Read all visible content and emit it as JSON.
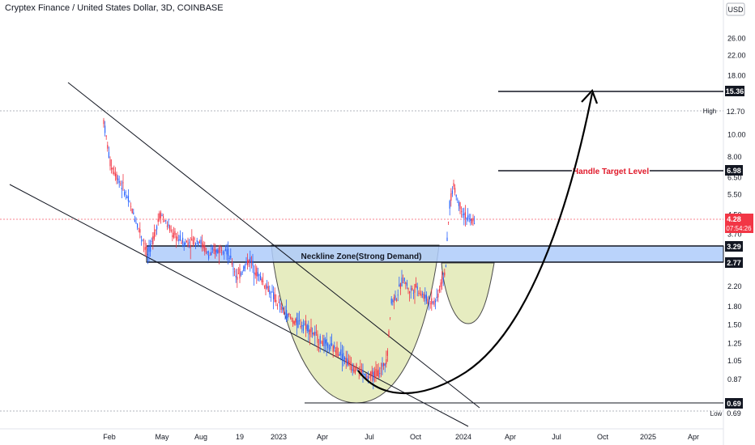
{
  "header": {
    "title": "Cryptex Finance / United States Dollar, 3D, COINBASE",
    "currency": "USD"
  },
  "chart_data": {
    "type": "candlestick",
    "title": "Cryptex Finance / United States Dollar, 3D, COINBASE",
    "y_scale": "log",
    "ylim": [
      0.6,
      36
    ],
    "y_ticks": [
      "26.00",
      "22.00",
      "18.00",
      "15.36",
      "12.70",
      "10.00",
      "8.00",
      "6.98",
      "6.50",
      "5.50",
      "4.50",
      "3.70",
      "3.29",
      "2.77",
      "2.20",
      "1.80",
      "1.50",
      "1.25",
      "1.05",
      "0.87",
      "0.69"
    ],
    "x_ticks": [
      "Feb",
      "May",
      "Aug",
      "19",
      "2023",
      "Apr",
      "Jul",
      "Oct",
      "2024",
      "Apr",
      "Jul",
      "Oct",
      "2025",
      "Apr"
    ],
    "price_labels": {
      "target": {
        "value": "15.36",
        "color": "#131722"
      },
      "high": {
        "label": "High",
        "value": "12.70"
      },
      "handle": {
        "value": "6.98",
        "color": "#131722"
      },
      "last": {
        "value": "4.28",
        "countdown": "07:54:26",
        "color": "#f23645"
      },
      "neck_top": {
        "value": "3.29",
        "color": "#131722"
      },
      "neck_bottom": {
        "value": "2.77",
        "color": "#131722"
      },
      "support": {
        "value": "0.69",
        "color": "#131722"
      },
      "low": {
        "label": "Low",
        "value": "0.69"
      }
    },
    "annotations": {
      "neckline": "Neckline Zone(Strong Demand)",
      "handle_target": "Handle Target Level"
    },
    "colors": {
      "up": "#2962ff",
      "down": "#f23645",
      "zone": "#aecbfa",
      "cup": "#e6ecc0",
      "text_red": "#e0192a"
    },
    "path": [
      [
        0,
        11.5
      ],
      [
        8,
        7.5
      ],
      [
        25,
        5.8
      ],
      [
        45,
        3.8
      ],
      [
        55,
        3.0
      ],
      [
        70,
        4.6
      ],
      [
        85,
        3.7
      ],
      [
        100,
        3.4
      ],
      [
        118,
        3.5
      ],
      [
        130,
        3.0
      ],
      [
        150,
        3.3
      ],
      [
        165,
        2.4
      ],
      [
        180,
        2.9
      ],
      [
        190,
        2.5
      ],
      [
        205,
        2.1
      ],
      [
        220,
        1.75
      ],
      [
        235,
        1.55
      ],
      [
        250,
        1.5
      ],
      [
        265,
        1.3
      ],
      [
        280,
        1.2
      ],
      [
        292,
        1.15
      ],
      [
        305,
        1.0
      ],
      [
        318,
        0.96
      ],
      [
        325,
        0.88
      ],
      [
        335,
        0.92
      ],
      [
        342,
        0.95
      ],
      [
        350,
        1.1
      ],
      [
        355,
        1.9
      ],
      [
        362,
        2.0
      ],
      [
        370,
        2.4
      ],
      [
        378,
        2.1
      ],
      [
        386,
        2.2
      ],
      [
        395,
        2.0
      ],
      [
        402,
        1.9
      ],
      [
        410,
        1.9
      ],
      [
        417,
        2.3
      ],
      [
        422,
        2.6
      ],
      [
        427,
        5.0
      ],
      [
        432,
        6.0
      ],
      [
        437,
        5.2
      ],
      [
        444,
        4.6
      ],
      [
        452,
        4.2
      ],
      [
        458,
        4.28
      ]
    ]
  }
}
